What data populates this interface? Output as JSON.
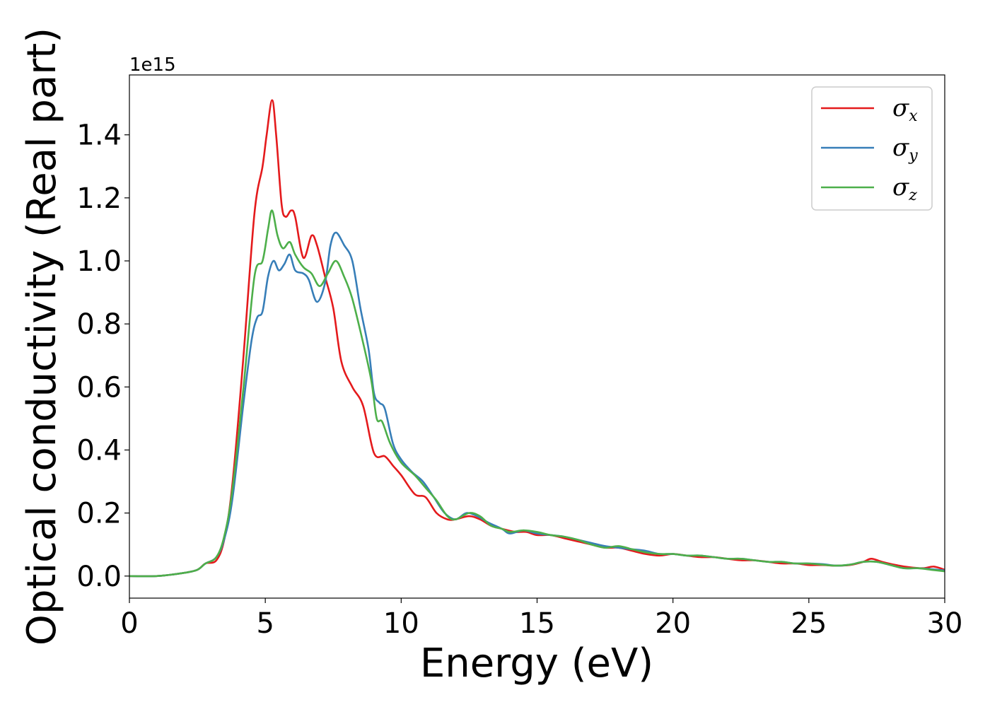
{
  "chart_data": {
    "type": "line",
    "xlabel": "Energy (eV)",
    "ylabel": "Optical conductivity (Real part)",
    "y_offset_label": "1e15",
    "xlim": [
      0,
      30
    ],
    "ylim": [
      -0.07,
      1.59
    ],
    "x_ticks": [
      0,
      5,
      10,
      15,
      20,
      25,
      30
    ],
    "x_tick_labels": [
      "0",
      "5",
      "10",
      "15",
      "20",
      "25",
      "30"
    ],
    "y_ticks": [
      0.0,
      0.2,
      0.4,
      0.6,
      0.8,
      1.0,
      1.2,
      1.4
    ],
    "y_tick_labels": [
      "0.0",
      "0.2",
      "0.4",
      "0.6",
      "0.8",
      "1.0",
      "1.2",
      "1.4"
    ],
    "legend_position": "top-right",
    "grid": false,
    "series": [
      {
        "name": "σx",
        "symbol": "σ",
        "subscript": "x",
        "color": "#e41a1c",
        "points": [
          [
            0,
            0
          ],
          [
            1,
            0
          ],
          [
            2,
            0.01
          ],
          [
            2.5,
            0.02
          ],
          [
            2.8,
            0.04
          ],
          [
            3.2,
            0.05
          ],
          [
            3.5,
            0.12
          ],
          [
            3.8,
            0.3
          ],
          [
            4.2,
            0.7
          ],
          [
            4.6,
            1.15
          ],
          [
            4.9,
            1.3
          ],
          [
            5.05,
            1.4
          ],
          [
            5.25,
            1.51
          ],
          [
            5.4,
            1.4
          ],
          [
            5.6,
            1.18
          ],
          [
            5.75,
            1.14
          ],
          [
            5.95,
            1.16
          ],
          [
            6.1,
            1.14
          ],
          [
            6.4,
            1.01
          ],
          [
            6.7,
            1.08
          ],
          [
            6.9,
            1.05
          ],
          [
            7.2,
            0.95
          ],
          [
            7.5,
            0.85
          ],
          [
            7.8,
            0.68
          ],
          [
            8.2,
            0.6
          ],
          [
            8.6,
            0.54
          ],
          [
            9.0,
            0.39
          ],
          [
            9.4,
            0.38
          ],
          [
            9.7,
            0.35
          ],
          [
            10.0,
            0.32
          ],
          [
            10.5,
            0.26
          ],
          [
            10.9,
            0.25
          ],
          [
            11.3,
            0.2
          ],
          [
            11.7,
            0.18
          ],
          [
            12.0,
            0.18
          ],
          [
            12.5,
            0.19
          ],
          [
            12.9,
            0.18
          ],
          [
            13.3,
            0.16
          ],
          [
            13.7,
            0.15
          ],
          [
            14.2,
            0.14
          ],
          [
            14.6,
            0.14
          ],
          [
            15.0,
            0.13
          ],
          [
            15.5,
            0.13
          ],
          [
            16.0,
            0.12
          ],
          [
            16.5,
            0.11
          ],
          [
            17.0,
            0.1
          ],
          [
            17.5,
            0.09
          ],
          [
            18.0,
            0.09
          ],
          [
            18.5,
            0.08
          ],
          [
            19.0,
            0.07
          ],
          [
            19.5,
            0.065
          ],
          [
            20.0,
            0.07
          ],
          [
            20.5,
            0.065
          ],
          [
            21.0,
            0.06
          ],
          [
            21.5,
            0.06
          ],
          [
            22.0,
            0.055
          ],
          [
            22.5,
            0.05
          ],
          [
            23.0,
            0.05
          ],
          [
            23.5,
            0.045
          ],
          [
            24.0,
            0.04
          ],
          [
            24.5,
            0.04
          ],
          [
            25.0,
            0.035
          ],
          [
            25.5,
            0.035
          ],
          [
            26.0,
            0.033
          ],
          [
            26.5,
            0.035
          ],
          [
            27.0,
            0.045
          ],
          [
            27.3,
            0.055
          ],
          [
            27.7,
            0.045
          ],
          [
            28.2,
            0.035
          ],
          [
            28.7,
            0.028
          ],
          [
            29.2,
            0.025
          ],
          [
            29.6,
            0.03
          ],
          [
            30.0,
            0.02
          ]
        ]
      },
      {
        "name": "σy",
        "symbol": "σ",
        "subscript": "y",
        "color": "#377eb8",
        "points": [
          [
            0,
            0
          ],
          [
            1,
            0
          ],
          [
            2,
            0.01
          ],
          [
            2.5,
            0.02
          ],
          [
            2.8,
            0.04
          ],
          [
            3.2,
            0.06
          ],
          [
            3.5,
            0.12
          ],
          [
            3.8,
            0.25
          ],
          [
            4.2,
            0.55
          ],
          [
            4.5,
            0.75
          ],
          [
            4.7,
            0.82
          ],
          [
            4.9,
            0.84
          ],
          [
            5.1,
            0.95
          ],
          [
            5.3,
            1.0
          ],
          [
            5.5,
            0.97
          ],
          [
            5.7,
            0.99
          ],
          [
            5.9,
            1.02
          ],
          [
            6.1,
            0.97
          ],
          [
            6.4,
            0.96
          ],
          [
            6.6,
            0.94
          ],
          [
            6.9,
            0.87
          ],
          [
            7.2,
            0.93
          ],
          [
            7.4,
            1.05
          ],
          [
            7.6,
            1.09
          ],
          [
            7.9,
            1.05
          ],
          [
            8.2,
            1.0
          ],
          [
            8.5,
            0.85
          ],
          [
            8.8,
            0.72
          ],
          [
            9.0,
            0.58
          ],
          [
            9.2,
            0.55
          ],
          [
            9.4,
            0.53
          ],
          [
            9.7,
            0.42
          ],
          [
            10.0,
            0.37
          ],
          [
            10.4,
            0.33
          ],
          [
            10.8,
            0.3
          ],
          [
            11.2,
            0.25
          ],
          [
            11.6,
            0.2
          ],
          [
            12.0,
            0.18
          ],
          [
            12.4,
            0.2
          ],
          [
            12.8,
            0.19
          ],
          [
            13.2,
            0.17
          ],
          [
            13.7,
            0.15
          ],
          [
            14.0,
            0.135
          ],
          [
            14.5,
            0.145
          ],
          [
            15.0,
            0.135
          ],
          [
            15.5,
            0.13
          ],
          [
            16.0,
            0.125
          ],
          [
            16.5,
            0.115
          ],
          [
            17.0,
            0.105
          ],
          [
            17.5,
            0.095
          ],
          [
            18.0,
            0.09
          ],
          [
            18.5,
            0.085
          ],
          [
            19.0,
            0.08
          ],
          [
            19.5,
            0.07
          ],
          [
            20.0,
            0.07
          ],
          [
            20.5,
            0.065
          ],
          [
            21.0,
            0.065
          ],
          [
            21.5,
            0.06
          ],
          [
            22.0,
            0.055
          ],
          [
            22.5,
            0.055
          ],
          [
            23.0,
            0.05
          ],
          [
            23.5,
            0.045
          ],
          [
            24.0,
            0.045
          ],
          [
            24.5,
            0.04
          ],
          [
            25.0,
            0.04
          ],
          [
            25.5,
            0.038
          ],
          [
            26.0,
            0.033
          ],
          [
            26.5,
            0.036
          ],
          [
            27.0,
            0.045
          ],
          [
            27.5,
            0.045
          ],
          [
            28.0,
            0.035
          ],
          [
            28.5,
            0.025
          ],
          [
            29.0,
            0.025
          ],
          [
            29.5,
            0.022
          ],
          [
            30.0,
            0.018
          ]
        ]
      },
      {
        "name": "σz",
        "symbol": "σ",
        "subscript": "z",
        "color": "#4daf4a",
        "points": [
          [
            0,
            0
          ],
          [
            1,
            0
          ],
          [
            2,
            0.01
          ],
          [
            2.5,
            0.02
          ],
          [
            2.8,
            0.04
          ],
          [
            3.2,
            0.06
          ],
          [
            3.5,
            0.13
          ],
          [
            3.8,
            0.28
          ],
          [
            4.2,
            0.6
          ],
          [
            4.6,
            0.95
          ],
          [
            4.9,
            1.0
          ],
          [
            5.1,
            1.1
          ],
          [
            5.25,
            1.16
          ],
          [
            5.45,
            1.08
          ],
          [
            5.65,
            1.04
          ],
          [
            5.9,
            1.06
          ],
          [
            6.1,
            1.02
          ],
          [
            6.4,
            0.98
          ],
          [
            6.7,
            0.96
          ],
          [
            7.0,
            0.92
          ],
          [
            7.3,
            0.96
          ],
          [
            7.6,
            1.0
          ],
          [
            7.9,
            0.95
          ],
          [
            8.2,
            0.88
          ],
          [
            8.6,
            0.74
          ],
          [
            8.9,
            0.62
          ],
          [
            9.1,
            0.5
          ],
          [
            9.3,
            0.49
          ],
          [
            9.6,
            0.42
          ],
          [
            10.0,
            0.36
          ],
          [
            10.5,
            0.32
          ],
          [
            10.9,
            0.28
          ],
          [
            11.3,
            0.24
          ],
          [
            11.7,
            0.19
          ],
          [
            12.0,
            0.18
          ],
          [
            12.5,
            0.2
          ],
          [
            12.9,
            0.19
          ],
          [
            13.3,
            0.16
          ],
          [
            13.7,
            0.15
          ],
          [
            14.0,
            0.14
          ],
          [
            14.5,
            0.145
          ],
          [
            15.0,
            0.14
          ],
          [
            15.5,
            0.13
          ],
          [
            16.0,
            0.125
          ],
          [
            16.5,
            0.115
          ],
          [
            17.0,
            0.1
          ],
          [
            17.5,
            0.09
          ],
          [
            18.0,
            0.095
          ],
          [
            18.5,
            0.085
          ],
          [
            19.0,
            0.075
          ],
          [
            19.5,
            0.07
          ],
          [
            20.0,
            0.07
          ],
          [
            20.5,
            0.065
          ],
          [
            21.0,
            0.065
          ],
          [
            21.5,
            0.06
          ],
          [
            22.0,
            0.055
          ],
          [
            22.5,
            0.055
          ],
          [
            23.0,
            0.05
          ],
          [
            23.5,
            0.045
          ],
          [
            24.0,
            0.045
          ],
          [
            24.5,
            0.04
          ],
          [
            25.0,
            0.04
          ],
          [
            25.5,
            0.036
          ],
          [
            26.0,
            0.033
          ],
          [
            26.5,
            0.036
          ],
          [
            27.0,
            0.045
          ],
          [
            27.5,
            0.045
          ],
          [
            28.0,
            0.035
          ],
          [
            28.5,
            0.025
          ],
          [
            29.0,
            0.025
          ],
          [
            29.5,
            0.02
          ],
          [
            30.0,
            0.015
          ]
        ]
      }
    ]
  }
}
